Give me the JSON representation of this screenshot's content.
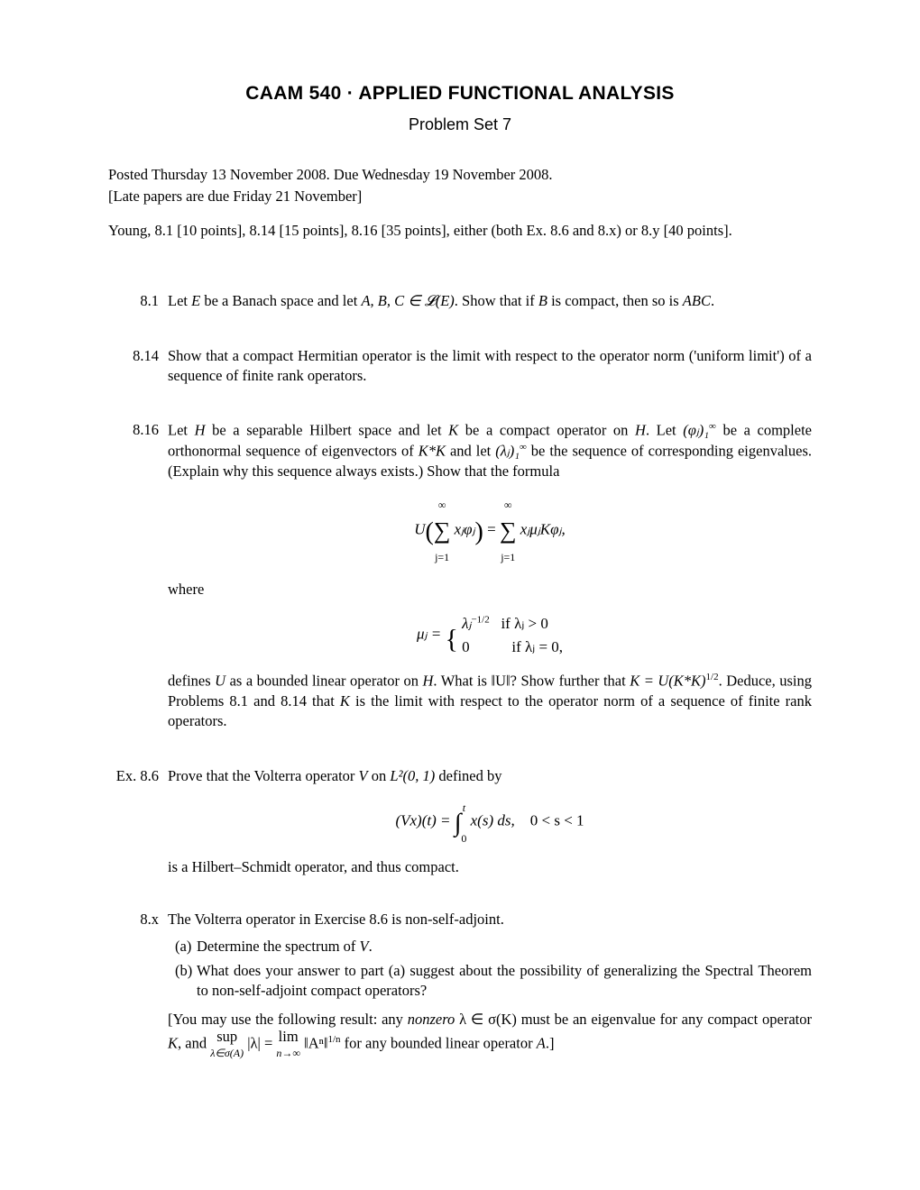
{
  "header": {
    "course": "CAAM 540",
    "dot": "·",
    "title": "APPLIED FUNCTIONAL ANALYSIS",
    "subtitle": "Problem Set 7"
  },
  "meta": {
    "posted": "Posted Thursday 13 November 2008. Due Wednesday 19 November 2008.",
    "late": "[Late papers are due Friday 21 November]",
    "assignment": "Young, 8.1 [10 points], 8.14 [15 points], 8.16 [35 points], either (both Ex. 8.6 and 8.x) or 8.y [40 points]."
  },
  "problems": {
    "p81": {
      "num": "8.1",
      "text_pre": "Let ",
      "E": "E",
      "text_mid1": " be a Banach space and let ",
      "ABC_in": "A, B, C ∈ 𝓛(E)",
      "text_mid2": ". Show that if ",
      "B": "B",
      "text_mid3": " is compact, then so is ",
      "ABC": "ABC",
      "text_end": "."
    },
    "p814": {
      "num": "8.14",
      "text": "Show that a compact Hermitian operator is the limit with respect to the operator norm ('uniform limit') of a sequence of finite rank operators."
    },
    "p816": {
      "num": "8.16",
      "line1a": "Let ",
      "H1": "H",
      "line1b": " be a separable Hilbert space and let ",
      "K1": "K",
      "line1c": " be a compact operator on ",
      "H2": "H",
      "line1d": ". Let ",
      "phi_seq": "(φⱼ)₁",
      "inf1": "∞",
      "line1e": " be a complete orthonormal sequence of eigenvectors of ",
      "KstarK": "K*K",
      "line1f": " and let ",
      "lam_seq": "(λⱼ)₁",
      "inf2": "∞",
      "line1g": " be the sequence of corresponding eigenvalues. (Explain why this sequence always exists.) Show that the formula",
      "where": "where",
      "defines_a": "defines ",
      "U1": "U",
      "defines_b": " as a bounded linear operator on ",
      "H3": "H",
      "defines_c": ". What is ",
      "normU": "‖U‖",
      "defines_d": "? Show further that ",
      "K_eq": "K = U(K*K)",
      "half": "1/2",
      "defines_e": ". Deduce, using Problems 8.1 and 8.14 that ",
      "K2": "K",
      "defines_f": " is the limit with respect to the operator norm of a sequence of finite rank operators."
    },
    "ex86": {
      "num": "Ex. 8.6",
      "text_a": "Prove that the Volterra operator ",
      "V": "V",
      "text_b": " on ",
      "L2": "L²(0, 1)",
      "text_c": " defined by",
      "conclusion": "is a Hilbert–Schmidt operator, and thus compact."
    },
    "p8x": {
      "num": "8.x",
      "intro": "The Volterra operator in Exercise 8.6 is non-self-adjoint.",
      "a_label": "(a)",
      "a_text_pre": "Determine the spectrum of ",
      "a_V": "V",
      "a_text_post": ".",
      "b_label": "(b)",
      "b_text": "What does your answer to part (a) suggest about the possibility of generalizing the Spectral Theorem to non-self-adjoint compact operators?",
      "hint_a": "[You may use the following result: any ",
      "nonzero": "nonzero",
      "hint_b": " λ ∈ σ(K) must be an eigenvalue for any compact operator ",
      "K": "K",
      "hint_c": ", and",
      "hint_d": " for any bounded linear operator ",
      "A": "A",
      "hint_e": ".]"
    }
  },
  "math": {
    "U_formula": {
      "U": "U",
      "sum_var": "j=1",
      "inf": "∞",
      "term1": "xⱼφⱼ",
      "eq": " = ",
      "term2": "xⱼμⱼKφⱼ,"
    },
    "mu_cases": {
      "mu": "μⱼ = ",
      "case1": "λⱼ",
      "case1_exp": "−1/2",
      "cond1": "if λⱼ > 0",
      "case2": "0",
      "cond2": "if λⱼ = 0,"
    },
    "volterra": {
      "lhs": "(Vx)(t) = ",
      "int_low": "0",
      "int_up": "t",
      "integrand": " x(s) ds,",
      "range": "0 < s < 1"
    },
    "spectral": {
      "sup": "sup",
      "sup_sub": "λ∈σ(A)",
      "abs_lam": "|λ| = ",
      "lim": "lim",
      "lim_sub": "n→∞",
      "norm_An": "‖Aⁿ‖",
      "exp": "1/n"
    }
  },
  "styling": {
    "page_bg": "#ffffff",
    "text_color": "#000000",
    "title_fontsize": 21,
    "body_fontsize": 16.5,
    "title_font": "Arial, Helvetica, sans-serif",
    "body_font": "Times New Roman, Times, serif"
  }
}
